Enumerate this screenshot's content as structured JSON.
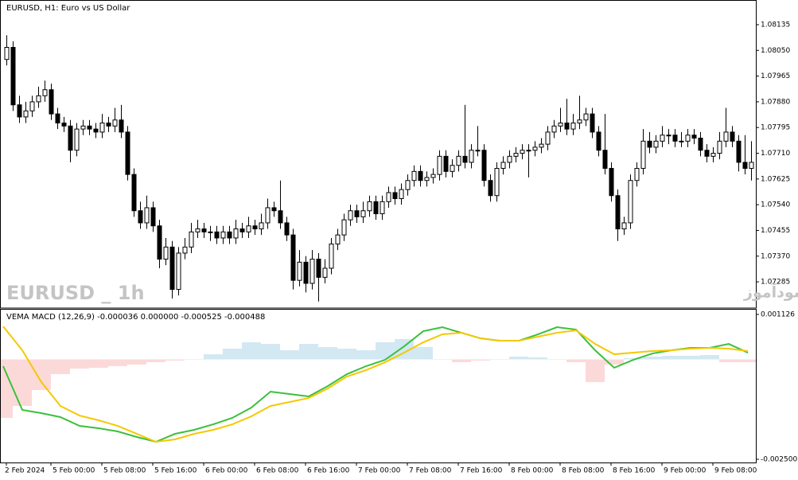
{
  "chart_data": [
    {
      "type": "candlestick",
      "title": "EURUSD, H1:  Euro vs US Dollar",
      "annotations": [
        "EURUSD _ 1h",
        "انتشار در سایت سودآموز"
      ],
      "categories": [
        "2 Feb 2024",
        null,
        null,
        null,
        null,
        null,
        null,
        "5 Feb 00:00",
        null,
        null,
        null,
        null,
        null,
        null,
        null,
        "5 Feb 08:00",
        null,
        null,
        null,
        null,
        null,
        null,
        null,
        "5 Feb 16:00",
        null,
        null,
        null,
        null,
        null,
        null,
        null,
        "6 Feb 00:00",
        null,
        null,
        null,
        null,
        null,
        null,
        null,
        "6 Feb 08:00",
        null,
        null,
        null,
        null,
        null,
        null,
        null,
        "6 Feb 16:00",
        null,
        null,
        null,
        null,
        null,
        null,
        null,
        "7 Feb 00:00",
        null,
        null,
        null,
        null,
        null,
        null,
        null,
        "7 Feb 08:00",
        null,
        null,
        null,
        null,
        null,
        null,
        null,
        "7 Feb 16:00",
        null,
        null,
        null,
        null,
        null,
        null,
        null,
        "8 Feb 00:00",
        null,
        null,
        null,
        null,
        null,
        null,
        null,
        "8 Feb 08:00",
        null,
        null,
        null,
        null,
        null,
        null,
        null,
        "8 Feb 16:00",
        null,
        null,
        null,
        null,
        null,
        null,
        null,
        "9 Feb 00:00",
        null,
        null,
        null,
        null,
        null,
        null,
        null,
        "9 Feb 08:00",
        null,
        null,
        null,
        null,
        null,
        null
      ],
      "values": [
        [
          1.0802,
          1.081,
          1.08,
          1.0806
        ],
        [
          1.0806,
          1.0808,
          1.0785,
          1.0787
        ],
        [
          1.0787,
          1.079,
          1.0781,
          1.0783
        ],
        [
          1.0783,
          1.0788,
          1.0781,
          1.0785
        ],
        [
          1.0785,
          1.079,
          1.0783,
          1.0788
        ],
        [
          1.0788,
          1.0793,
          1.0786,
          1.079
        ],
        [
          1.079,
          1.0795,
          1.0788,
          1.0792
        ],
        [
          1.0792,
          1.0794,
          1.0782,
          1.0784
        ],
        [
          1.0784,
          1.0786,
          1.0779,
          1.0781
        ],
        [
          1.0781,
          1.0783,
          1.0778,
          1.078
        ],
        [
          1.078,
          1.0782,
          1.0768,
          1.0772
        ],
        [
          1.0772,
          1.0781,
          1.077,
          1.0779
        ],
        [
          1.0779,
          1.0782,
          1.0777,
          1.078
        ],
        [
          1.078,
          1.0782,
          1.0777,
          1.0779
        ],
        [
          1.0779,
          1.0781,
          1.0776,
          1.0778
        ],
        [
          1.0778,
          1.0784,
          1.0776,
          1.0781
        ],
        [
          1.0781,
          1.0783,
          1.0778,
          1.078
        ],
        [
          1.078,
          1.0786,
          1.0778,
          1.0782
        ],
        [
          1.0782,
          1.0787,
          1.0776,
          1.0778
        ],
        [
          1.0778,
          1.078,
          1.0762,
          1.0764
        ],
        [
          1.0764,
          1.0766,
          1.075,
          1.0752
        ],
        [
          1.0752,
          1.0755,
          1.0746,
          1.0748
        ],
        [
          1.0748,
          1.0757,
          1.0746,
          1.0753
        ],
        [
          1.0753,
          1.0755,
          1.0745,
          1.0747
        ],
        [
          1.0747,
          1.0749,
          1.0733,
          1.0736
        ],
        [
          1.0736,
          1.0743,
          1.0734,
          1.074
        ],
        [
          1.074,
          1.0742,
          1.0723,
          1.0726
        ],
        [
          1.0726,
          1.074,
          1.0724,
          1.0738
        ],
        [
          1.0738,
          1.0743,
          1.0736,
          1.074
        ],
        [
          1.074,
          1.0748,
          1.0738,
          1.0745
        ],
        [
          1.0745,
          1.0749,
          1.0743,
          1.0746
        ],
        [
          1.0746,
          1.0748,
          1.0743,
          1.0745
        ],
        [
          1.0745,
          1.0747,
          1.0742,
          1.0745
        ],
        [
          1.0745,
          1.0747,
          1.0741,
          1.0743
        ],
        [
          1.0743,
          1.0747,
          1.0741,
          1.0745
        ],
        [
          1.0745,
          1.0747,
          1.0741,
          1.0743
        ],
        [
          1.0743,
          1.0749,
          1.0741,
          1.0746
        ],
        [
          1.0746,
          1.0748,
          1.0743,
          1.0745
        ],
        [
          1.0745,
          1.075,
          1.0743,
          1.0747
        ],
        [
          1.0747,
          1.0749,
          1.0744,
          1.0746
        ],
        [
          1.0746,
          1.0751,
          1.0744,
          1.0748
        ],
        [
          1.0748,
          1.0756,
          1.0746,
          1.0753
        ],
        [
          1.0753,
          1.0755,
          1.075,
          1.0752
        ],
        [
          1.0752,
          1.0762,
          1.0746,
          1.0748
        ],
        [
          1.0748,
          1.075,
          1.0742,
          1.0744
        ],
        [
          1.0744,
          1.0746,
          1.0726,
          1.0729
        ],
        [
          1.0729,
          1.0739,
          1.0727,
          1.0735
        ],
        [
          1.0735,
          1.0737,
          1.0725,
          1.0728
        ],
        [
          1.0728,
          1.0739,
          1.0726,
          1.0736
        ],
        [
          1.0736,
          1.0738,
          1.0722,
          1.073
        ],
        [
          1.073,
          1.0736,
          1.0728,
          1.0733
        ],
        [
          1.0733,
          1.0743,
          1.0731,
          1.0741
        ],
        [
          1.0741,
          1.0746,
          1.0739,
          1.0744
        ],
        [
          1.0744,
          1.0751,
          1.0742,
          1.0749
        ],
        [
          1.0749,
          1.0754,
          1.0747,
          1.0752
        ],
        [
          1.0752,
          1.0754,
          1.0748,
          1.075
        ],
        [
          1.075,
          1.0755,
          1.0748,
          1.0752
        ],
        [
          1.0752,
          1.0757,
          1.075,
          1.0755
        ],
        [
          1.0755,
          1.0757,
          1.0749,
          1.0751
        ],
        [
          1.0751,
          1.0757,
          1.0749,
          1.0755
        ],
        [
          1.0755,
          1.076,
          1.0753,
          1.0758
        ],
        [
          1.0758,
          1.076,
          1.0754,
          1.0756
        ],
        [
          1.0756,
          1.0761,
          1.0754,
          1.0759
        ],
        [
          1.0759,
          1.0764,
          1.0757,
          1.0762
        ],
        [
          1.0762,
          1.0767,
          1.076,
          1.0765
        ],
        [
          1.0765,
          1.0767,
          1.076,
          1.0762
        ],
        [
          1.0762,
          1.0765,
          1.076,
          1.0763
        ],
        [
          1.0763,
          1.0766,
          1.0761,
          1.0764
        ],
        [
          1.0764,
          1.0772,
          1.0762,
          1.077
        ],
        [
          1.077,
          1.0772,
          1.0763,
          1.0765
        ],
        [
          1.0765,
          1.0769,
          1.0763,
          1.0767
        ],
        [
          1.0767,
          1.0772,
          1.0765,
          1.077
        ],
        [
          1.077,
          1.0787,
          1.0766,
          1.0768
        ],
        [
          1.0768,
          1.0774,
          1.0766,
          1.0772
        ],
        [
          1.0772,
          1.078,
          1.077,
          1.0772
        ],
        [
          1.0772,
          1.0774,
          1.076,
          1.0762
        ],
        [
          1.0762,
          1.0764,
          1.0755,
          1.0757
        ],
        [
          1.0757,
          1.0768,
          1.0755,
          1.0766
        ],
        [
          1.0766,
          1.077,
          1.0764,
          1.0768
        ],
        [
          1.0768,
          1.0772,
          1.0766,
          1.077
        ],
        [
          1.077,
          1.0773,
          1.0768,
          1.0771
        ],
        [
          1.0771,
          1.0774,
          1.0769,
          1.0772
        ],
        [
          1.0772,
          1.0774,
          1.0763,
          1.0772
        ],
        [
          1.0772,
          1.0775,
          1.077,
          1.0773
        ],
        [
          1.0773,
          1.0776,
          1.0771,
          1.0774
        ],
        [
          1.0774,
          1.078,
          1.0772,
          1.0778
        ],
        [
          1.0778,
          1.0782,
          1.0776,
          1.078
        ],
        [
          1.078,
          1.0786,
          1.0778,
          1.0781
        ],
        [
          1.0781,
          1.0789,
          1.0777,
          1.0779
        ],
        [
          1.0779,
          1.0784,
          1.0777,
          1.0781
        ],
        [
          1.0781,
          1.079,
          1.0779,
          1.0782
        ],
        [
          1.0782,
          1.0786,
          1.078,
          1.0784
        ],
        [
          1.0784,
          1.0786,
          1.0776,
          1.0778
        ],
        [
          1.0778,
          1.078,
          1.077,
          1.0772
        ],
        [
          1.0772,
          1.0784,
          1.0764,
          1.0766
        ],
        [
          1.0766,
          1.0768,
          1.0755,
          1.0757
        ],
        [
          1.0757,
          1.0759,
          1.0742,
          1.0746
        ],
        [
          1.0746,
          1.075,
          1.0744,
          1.0748
        ],
        [
          1.0748,
          1.0764,
          1.0746,
          1.0762
        ],
        [
          1.0762,
          1.0768,
          1.076,
          1.0766
        ],
        [
          1.0766,
          1.0779,
          1.0764,
          1.0775
        ],
        [
          1.0775,
          1.0778,
          1.0771,
          1.0773
        ],
        [
          1.0773,
          1.0777,
          1.0771,
          1.0775
        ],
        [
          1.0775,
          1.078,
          1.0773,
          1.0777
        ],
        [
          1.0777,
          1.0779,
          1.0774,
          1.0777
        ],
        [
          1.0777,
          1.0779,
          1.0773,
          1.0775
        ],
        [
          1.0775,
          1.0778,
          1.0773,
          1.0775
        ],
        [
          1.0775,
          1.0779,
          1.0773,
          1.0777
        ],
        [
          1.0777,
          1.0779,
          1.0774,
          1.0776
        ],
        [
          1.0776,
          1.0778,
          1.077,
          1.0772
        ],
        [
          1.0772,
          1.0774,
          1.0768,
          1.077
        ],
        [
          1.077,
          1.0773,
          1.0768,
          1.0771
        ],
        [
          1.0771,
          1.0778,
          1.0769,
          1.0775
        ],
        [
          1.0775,
          1.0786,
          1.0773,
          1.0778
        ],
        [
          1.0778,
          1.078,
          1.0773,
          1.0775
        ],
        [
          1.0775,
          1.0777,
          1.0765,
          1.0768
        ],
        [
          1.0768,
          1.0777,
          1.0764,
          1.0766
        ],
        [
          1.0766,
          1.0775,
          1.0762,
          1.0768
        ]
      ],
      "up_color": "#ffffff",
      "down_color": "#000000",
      "ylim": [
        1.07201,
        1.08206
      ],
      "yticks": [
        1.08135,
        {
          "value": 1.0805,
          "label": "1.08050"
        },
        1.07965,
        {
          "value": 1.0788,
          "label": "1.07880"
        },
        1.07795,
        {
          "value": 1.0771,
          "label": "1.07710"
        },
        1.07625,
        {
          "value": 1.0754,
          "label": "1.07540"
        },
        1.07455,
        {
          "value": 1.0737,
          "label": "1.07370"
        },
        1.07285
      ]
    },
    {
      "type": "macd",
      "title": "VEMA MACD (12,26,9) -0.000036 0.000000 -0.000525 -0.000488",
      "ylim": [
        -0.00258,
        0.001246
      ],
      "yticks": [
        0.001126,
        {
          "value": -0.0025,
          "label": "-0.002500"
        }
      ],
      "series": [
        {
          "style": "histogram",
          "color": "#d2e8f3",
          "negative_color": "#fcd9d9",
          "values": [
            -0.001464,
            -0.001165,
            -0.000767,
            -0.000369,
            -0.000229,
            -0.000209,
            -0.000169,
            -0.000129,
            -7e-05,
            -3e-05,
            -1e-05,
            0.000129,
            0.000269,
            0.000428,
            0.000388,
            0.000229,
            0.000388,
            0.000309,
            0.000269,
            0.000229,
            0.000428,
            0.000508,
            0.000309,
            -1e-05,
            -7e-05,
            -3e-05,
            -1e-05,
            7e-05,
            5e-05,
            1e-05,
            -7e-05,
            -0.000568,
            -0.000129,
            3e-05,
            7e-05,
            9e-05,
            9e-05,
            0.00011,
            -7e-05,
            -7e-05
          ]
        },
        {
          "style": "line",
          "color": "#3cc03c",
          "values": [
            -0.000169,
            -0.001265,
            -0.001345,
            -0.001444,
            -0.001664,
            -0.001723,
            -0.001803,
            -0.001942,
            -0.002062,
            -0.001863,
            -0.001763,
            -0.001624,
            -0.001464,
            -0.001205,
            -0.000807,
            -0.000867,
            -0.000926,
            -0.000667,
            -0.000369,
            -0.000169,
            -1e-05,
            0.000329,
            0.000707,
            0.000807,
            0.000667,
            0.000528,
            0.000468,
            0.000468,
            0.000628,
            0.000807,
            0.000747,
            0.000229,
            -0.000209,
            -1e-05,
            0.000149,
            0.000229,
            0.000289,
            0.000289,
            0.000388,
            0.000169
          ]
        },
        {
          "style": "line",
          "color": "#f5c800",
          "values": [
            0.000827,
            0.000229,
            -0.000568,
            -0.001165,
            -0.001405,
            -0.001524,
            -0.001664,
            -0.001863,
            -0.002062,
            -0.002002,
            -0.001863,
            -0.001763,
            -0.001624,
            -0.001424,
            -0.001165,
            -0.001066,
            -0.000966,
            -0.000727,
            -0.000428,
            -0.000269,
            -7e-05,
            0.000169,
            0.000428,
            0.000628,
            0.000667,
            0.000528,
            0.000468,
            0.000468,
            0.000568,
            0.000667,
            0.000727,
            0.000388,
            0.000129,
            0.000169,
            0.000209,
            0.000229,
            0.000269,
            0.000289,
            0.000269,
            0.000209
          ]
        }
      ]
    }
  ]
}
